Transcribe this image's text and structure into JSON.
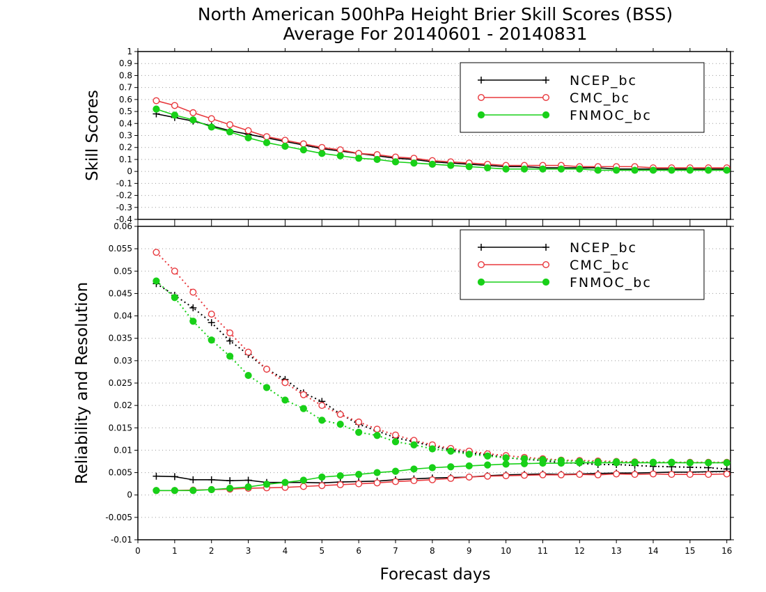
{
  "title_line1": "North American 500hPa Height Brier Skill Scores (BSS)",
  "title_line2": "Average For 20140601 - 20140831",
  "xlabel": "Forecast days",
  "colors": {
    "NCEP_bc": "#000000",
    "CMC_bc": "#e8383d",
    "FNMOC_bc": "#18d018"
  },
  "chart_data": [
    {
      "type": "line",
      "ylabel": "Skill Scores",
      "xlim": [
        0,
        16.1
      ],
      "ylim": [
        -0.4,
        1.0
      ],
      "xticks": [
        "0",
        "1",
        "2",
        "3",
        "4",
        "5",
        "6",
        "7",
        "8",
        "9",
        "10",
        "11",
        "12",
        "13",
        "14",
        "15",
        "16"
      ],
      "yticks": [
        "-0.4",
        "-0.3",
        "-0.2",
        "-0.1",
        "0",
        "0.1",
        "0.2",
        "0.3",
        "0.4",
        "0.5",
        "0.6",
        "0.7",
        "0.8",
        "0.9",
        "1"
      ],
      "grid": true,
      "legend_position": "top-right",
      "x": [
        0.5,
        1,
        1.5,
        2,
        2.5,
        3,
        3.5,
        4,
        4.5,
        5,
        5.5,
        6,
        6.5,
        7,
        7.5,
        8,
        8.5,
        9,
        9.5,
        10,
        10.5,
        11,
        11.5,
        12,
        12.5,
        13,
        13.5,
        14,
        14.5,
        15,
        15.5,
        16
      ],
      "series": [
        {
          "name": "NCEP_bc",
          "marker": "plus",
          "values": [
            0.48,
            0.45,
            0.42,
            0.38,
            0.34,
            0.31,
            0.28,
            0.25,
            0.22,
            0.19,
            0.17,
            0.15,
            0.13,
            0.11,
            0.1,
            0.08,
            0.07,
            0.06,
            0.05,
            0.04,
            0.04,
            0.03,
            0.03,
            0.03,
            0.03,
            0.02,
            0.02,
            0.02,
            0.02,
            0.02,
            0.02,
            0.02
          ]
        },
        {
          "name": "CMC_bc",
          "marker": "open-circle",
          "values": [
            0.59,
            0.55,
            0.49,
            0.44,
            0.39,
            0.34,
            0.29,
            0.26,
            0.23,
            0.2,
            0.18,
            0.15,
            0.14,
            0.12,
            0.11,
            0.09,
            0.08,
            0.07,
            0.06,
            0.05,
            0.05,
            0.05,
            0.05,
            0.04,
            0.04,
            0.04,
            0.04,
            0.03,
            0.03,
            0.03,
            0.03,
            0.03
          ]
        },
        {
          "name": "FNMOC_bc",
          "marker": "filled-circle",
          "values": [
            0.52,
            0.47,
            0.43,
            0.37,
            0.33,
            0.28,
            0.24,
            0.21,
            0.18,
            0.15,
            0.13,
            0.11,
            0.1,
            0.08,
            0.07,
            0.06,
            0.05,
            0.04,
            0.03,
            0.02,
            0.02,
            0.02,
            0.02,
            0.02,
            0.01,
            0.01,
            0.01,
            0.01,
            0.01,
            0.01,
            0.01,
            0.01
          ]
        }
      ]
    },
    {
      "type": "line",
      "ylabel": "Reliability and Resolution",
      "xlim": [
        0,
        16.1
      ],
      "ylim": [
        -0.01,
        0.06
      ],
      "xticks": [
        "0",
        "1",
        "2",
        "3",
        "4",
        "5",
        "6",
        "7",
        "8",
        "9",
        "10",
        "11",
        "12",
        "13",
        "14",
        "15",
        "16"
      ],
      "yticks": [
        "-0.01",
        "-0.005",
        "0",
        "0.005",
        "0.01",
        "0.015",
        "0.02",
        "0.025",
        "0.03",
        "0.035",
        "0.04",
        "0.045",
        "0.05",
        "0.055",
        "0.06"
      ],
      "grid": true,
      "legend_position": "top-right",
      "x": [
        0.5,
        1,
        1.5,
        2,
        2.5,
        3,
        3.5,
        4,
        4.5,
        5,
        5.5,
        6,
        6.5,
        7,
        7.5,
        8,
        8.5,
        9,
        9.5,
        10,
        10.5,
        11,
        11.5,
        12,
        12.5,
        13,
        13.5,
        14,
        14.5,
        15,
        15.5,
        16
      ],
      "series": [
        {
          "name": "NCEP_bc",
          "component": "resolution",
          "line": "dotted",
          "marker": "plus",
          "values": [
            0.0472,
            0.0446,
            0.0418,
            0.0385,
            0.0344,
            0.0314,
            0.0281,
            0.0258,
            0.0228,
            0.0209,
            0.0181,
            0.0158,
            0.0143,
            0.0128,
            0.0119,
            0.0109,
            0.0101,
            0.0094,
            0.009,
            0.0083,
            0.008,
            0.0077,
            0.0072,
            0.0071,
            0.0068,
            0.0068,
            0.0066,
            0.0064,
            0.0063,
            0.0062,
            0.0061,
            0.0058
          ]
        },
        {
          "name": "CMC_bc",
          "component": "resolution",
          "line": "dotted",
          "marker": "open-circle",
          "values": [
            0.0542,
            0.05,
            0.0453,
            0.0404,
            0.0362,
            0.0319,
            0.0281,
            0.0251,
            0.0224,
            0.02,
            0.018,
            0.0163,
            0.0147,
            0.0134,
            0.0122,
            0.0112,
            0.0104,
            0.0098,
            0.0092,
            0.0088,
            0.0084,
            0.0081,
            0.0078,
            0.0077,
            0.0076,
            0.0075,
            0.0074,
            0.0073,
            0.0073,
            0.0073,
            0.0073,
            0.0073
          ]
        },
        {
          "name": "FNMOC_bc",
          "component": "resolution",
          "line": "dotted",
          "marker": "filled-circle",
          "values": [
            0.0478,
            0.0441,
            0.0388,
            0.0346,
            0.031,
            0.0267,
            0.024,
            0.0212,
            0.0193,
            0.0167,
            0.0158,
            0.014,
            0.0133,
            0.0119,
            0.0112,
            0.0103,
            0.0098,
            0.0091,
            0.0087,
            0.0083,
            0.0081,
            0.0079,
            0.0077,
            0.0075,
            0.0074,
            0.0074,
            0.0073,
            0.0073,
            0.0073,
            0.0072,
            0.0072,
            0.0072
          ]
        },
        {
          "name": "NCEP_bc",
          "component": "reliability",
          "line": "solid",
          "marker": "plus",
          "values": [
            0.0042,
            0.0041,
            0.0034,
            0.0034,
            0.0032,
            0.0033,
            0.0028,
            0.0028,
            0.0028,
            0.0027,
            0.0029,
            0.003,
            0.0031,
            0.0034,
            0.0036,
            0.0038,
            0.0039,
            0.004,
            0.0043,
            0.0045,
            0.0046,
            0.0047,
            0.0046,
            0.0047,
            0.0048,
            0.0049,
            0.0049,
            0.005,
            0.0051,
            0.0051,
            0.0052,
            0.0053
          ]
        },
        {
          "name": "CMC_bc",
          "component": "reliability",
          "line": "solid",
          "marker": "open-circle",
          "values": [
            0.001,
            0.001,
            0.0011,
            0.0012,
            0.0013,
            0.0015,
            0.0016,
            0.0017,
            0.0019,
            0.0021,
            0.0023,
            0.0025,
            0.0027,
            0.003,
            0.0032,
            0.0034,
            0.0037,
            0.004,
            0.0042,
            0.0043,
            0.0044,
            0.0045,
            0.0045,
            0.0046,
            0.0045,
            0.0047,
            0.0046,
            0.0047,
            0.0046,
            0.0046,
            0.0046,
            0.0047
          ]
        },
        {
          "name": "FNMOC_bc",
          "component": "reliability",
          "line": "solid",
          "marker": "filled-circle",
          "values": [
            0.001,
            0.001,
            0.001,
            0.0012,
            0.0015,
            0.0018,
            0.0024,
            0.0028,
            0.0033,
            0.004,
            0.0043,
            0.0046,
            0.005,
            0.0053,
            0.0058,
            0.0061,
            0.0063,
            0.0065,
            0.0067,
            0.0069,
            0.007,
            0.0071,
            0.0071,
            0.0072,
            0.0072,
            0.0072,
            0.0072,
            0.0072,
            0.0072,
            0.0072,
            0.0072,
            0.0072
          ]
        }
      ]
    }
  ]
}
